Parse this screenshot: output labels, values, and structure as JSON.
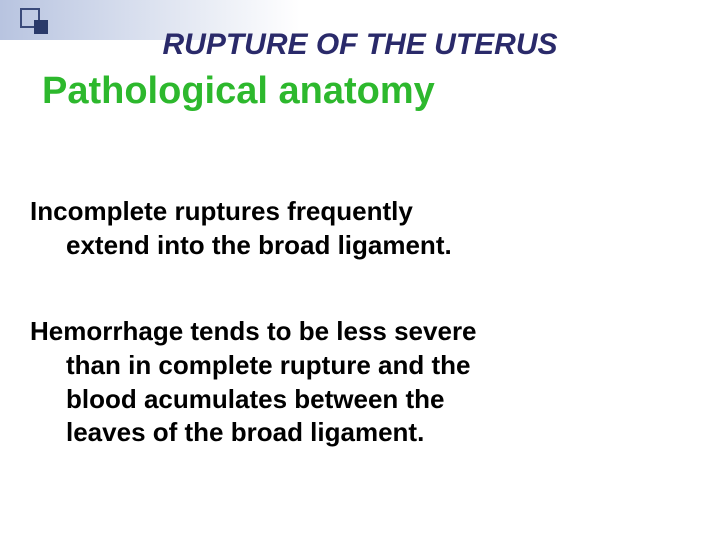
{
  "decoration": {
    "gradient_color": "#b8c4e0",
    "square_outline_color": "#3a4a7a",
    "square_solid_color": "#2a3a6a"
  },
  "title1": {
    "text": "RUPTURE OF THE UTERUS",
    "color": "#2a2a6a",
    "fontsize": 30,
    "italic": true,
    "bold": true
  },
  "title2": {
    "text": "Pathological anatomy",
    "color": "#2db82d",
    "fontsize": 38,
    "bold": true
  },
  "paragraph1": {
    "line1": "Incomplete ruptures frequently",
    "line2": "extend into the broad ligament.",
    "color": "#000000",
    "fontsize": 26,
    "bold": true
  },
  "paragraph2": {
    "line1": "Hemorrhage tends to be less severe",
    "line2": "than in complete rupture and the",
    "line3": "blood acumulates between the",
    "line4": "leaves of the broad ligament.",
    "color": "#000000",
    "fontsize": 26,
    "bold": true
  },
  "background_color": "#ffffff"
}
